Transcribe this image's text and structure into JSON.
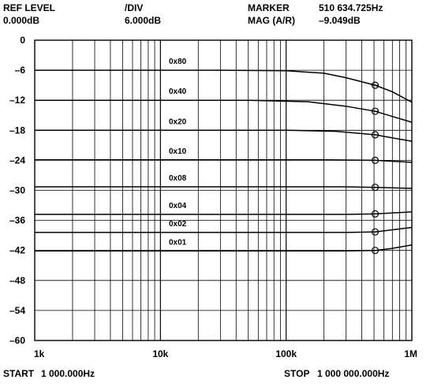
{
  "header": {
    "ref_level_label": "REF LEVEL",
    "ref_level_value": "0.000dB",
    "div_label": "/DIV",
    "div_value": "6.000dB",
    "marker_label": "MARKER",
    "marker_value": "510 634.725Hz",
    "mag_label": "MAG (A/R)",
    "mag_value": "–9.049dB"
  },
  "footer": {
    "start_label": "START",
    "start_value": "1 000.000Hz",
    "stop_label": "STOP",
    "stop_value": "1 000 000.000Hz"
  },
  "chart_data": {
    "type": "line",
    "x_scale": "log",
    "xlim": [
      1000,
      1000000
    ],
    "ylim": [
      -60,
      0
    ],
    "x_tick_labels": [
      {
        "value": 1000,
        "label": "1k"
      },
      {
        "value": 10000,
        "label": "10k"
      },
      {
        "value": 100000,
        "label": "100k"
      },
      {
        "value": 1000000,
        "label": "1M"
      }
    ],
    "y_ticks": [
      0,
      -6,
      -12,
      -18,
      -24,
      -30,
      -36,
      -42,
      -48,
      -54,
      -60
    ],
    "y_tick_labels": [
      "0",
      "–6",
      "–12",
      "–18",
      "–24",
      "–30",
      "–36",
      "–42",
      "–48",
      "–54",
      "–60"
    ],
    "grid": true,
    "marker_x": 510634.725,
    "series": [
      {
        "name": "0x80",
        "x": [
          1000,
          30000,
          100000,
          200000,
          300000,
          510634.725,
          700000,
          1000000
        ],
        "y": [
          -6,
          -6,
          -6.1,
          -6.6,
          -7.5,
          -9.0,
          -10.3,
          -12.4
        ]
      },
      {
        "name": "0x40",
        "x": [
          1000,
          50000,
          150000,
          300000,
          510634.725,
          1000000
        ],
        "y": [
          -12,
          -12,
          -12.3,
          -13.2,
          -14.2,
          -16.4
        ]
      },
      {
        "name": "0x20",
        "x": [
          1000,
          100000,
          250000,
          510634.725,
          1000000
        ],
        "y": [
          -18,
          -18,
          -18.2,
          -18.9,
          -20.2
        ]
      },
      {
        "name": "0x10",
        "x": [
          1000,
          200000,
          510634.725,
          1000000
        ],
        "y": [
          -23.9,
          -23.9,
          -24.0,
          -24.4
        ]
      },
      {
        "name": "0x08",
        "x": [
          1000,
          300000,
          510634.725,
          1000000
        ],
        "y": [
          -29.3,
          -29.3,
          -29.4,
          -29.6
        ]
      },
      {
        "name": "0x04",
        "x": [
          1000,
          300000,
          510634.725,
          1000000
        ],
        "y": [
          -34.8,
          -34.8,
          -34.7,
          -34.3
        ]
      },
      {
        "name": "0x02",
        "x": [
          1000,
          300000,
          510634.725,
          1000000
        ],
        "y": [
          -38.4,
          -38.4,
          -38.3,
          -37.4
        ]
      },
      {
        "name": "0x01",
        "x": [
          1000,
          300000,
          510634.725,
          700000,
          1000000
        ],
        "y": [
          -42.1,
          -42.1,
          -42.0,
          -41.6,
          -40.9
        ]
      }
    ]
  }
}
